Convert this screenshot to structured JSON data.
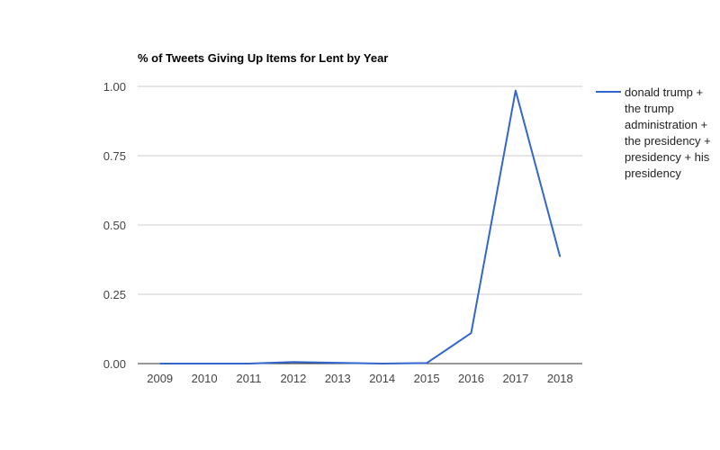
{
  "chart_data": {
    "type": "line",
    "title": "% of Tweets Giving Up Items for Lent by Year",
    "xlabel": "",
    "ylabel": "",
    "x": [
      "2009",
      "2010",
      "2011",
      "2012",
      "2013",
      "2014",
      "2015",
      "2016",
      "2017",
      "2018"
    ],
    "series": [
      {
        "name": "donald trump + the trump administration + the presidency + presidency + his presidency",
        "color": "#3366cc",
        "values": [
          0.0,
          0.0,
          0.0,
          0.006,
          0.003,
          0.0,
          0.002,
          0.11,
          0.985,
          0.385
        ]
      }
    ],
    "ylim": [
      0,
      1
    ],
    "yticks": [
      "0.00",
      "0.25",
      "0.50",
      "0.75",
      "1.00"
    ],
    "grid": true,
    "legend_position": "right"
  }
}
